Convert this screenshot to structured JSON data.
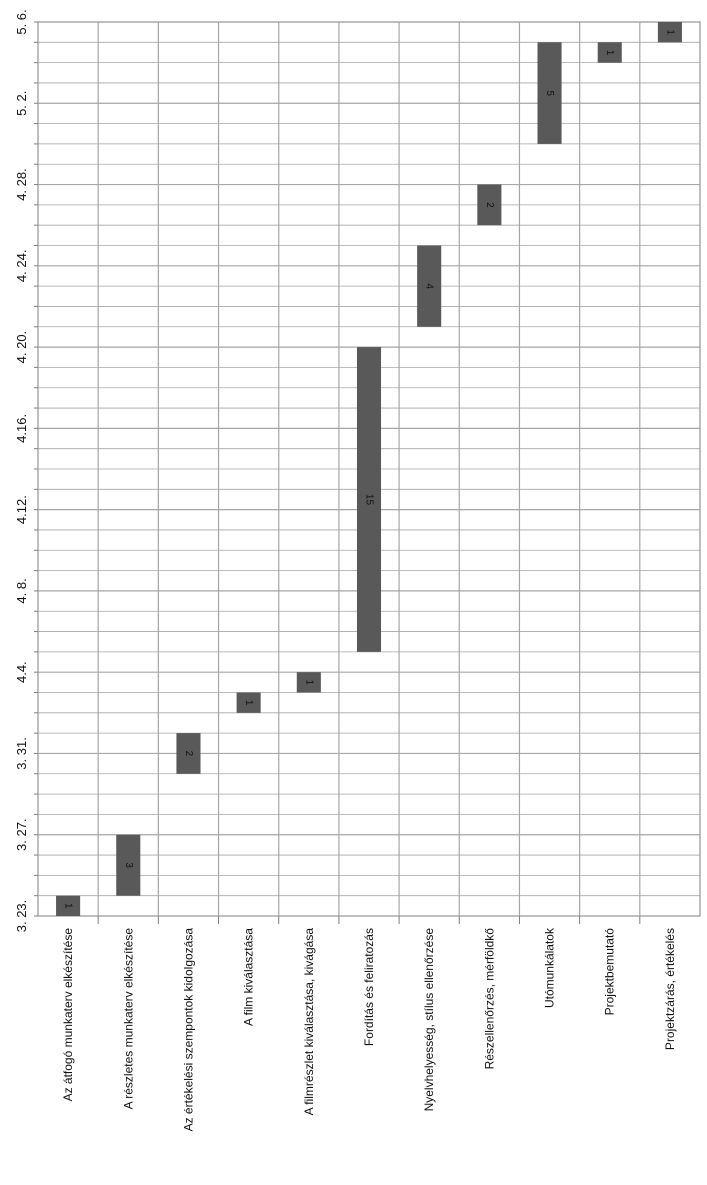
{
  "chart_data": {
    "type": "bar",
    "orientation": "gantt",
    "date_ticks": [
      "3. 23.",
      "3. 27.",
      "3. 31.",
      "4.4.",
      "4. 8.",
      "4.12.",
      "4.16.",
      "4. 20.",
      "4. 24.",
      "4. 28.",
      "5. 2.",
      "5. 6."
    ],
    "tasks": [
      {
        "name": "Az átfogó munkaterv elkészítése",
        "start": "3. 23.",
        "duration": 1,
        "label": "1"
      },
      {
        "name": "A részletes  munkaterv elkészítése",
        "start": "3. 24.",
        "duration": 3,
        "label": "3"
      },
      {
        "name": "Az értékelési szempontok kidolgozása",
        "start": "3. 30.",
        "duration": 2,
        "label": "2"
      },
      {
        "name": "A film kiválasztása",
        "start": "4. 2.",
        "duration": 1,
        "label": "1"
      },
      {
        "name": "A filmrészlet kiválasztása, kivágása",
        "start": "4. 3.",
        "duration": 1,
        "label": "1"
      },
      {
        "name": "Fordítás és feliratozás",
        "start": "4. 5.",
        "duration": 15,
        "label": "15"
      },
      {
        "name": "Nyelvhelyesség, stílus ellenőrzése",
        "start": "4. 21.",
        "duration": 4,
        "label": "4"
      },
      {
        "name": "Részellenőrzés,  mérföldkő",
        "start": "4. 26.",
        "duration": 2,
        "label": "2"
      },
      {
        "name": "Utómunkálatok",
        "start": "4. 30.",
        "duration": 5,
        "label": "5"
      },
      {
        "name": "Projektbemutató",
        "start": "5. 4.",
        "duration": 1,
        "label": "1"
      },
      {
        "name": "Projektzárás, értékelés",
        "start": "5. 5.",
        "duration": 1,
        "label": "1"
      }
    ],
    "grid": true,
    "colors": {
      "bar": "#595959",
      "bar_label": "#1a1a1a",
      "grid": "#a6a6a6",
      "axis": "#7f7f7f"
    }
  }
}
